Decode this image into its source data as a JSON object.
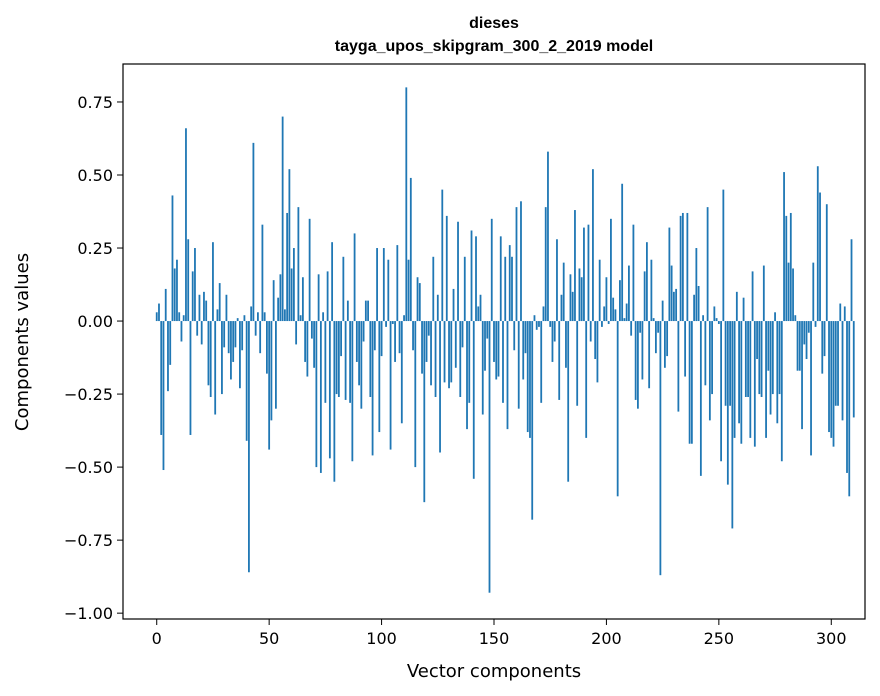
{
  "chart_data": {
    "type": "bar",
    "title_line1": "dieses",
    "title_line2": "tayga_upos_skipgram_300_2_2019 model",
    "xlabel": "Vector components",
    "ylabel": "Components values",
    "xlim": [
      -15,
      315
    ],
    "ylim": [
      -1.02,
      0.88
    ],
    "xticks": [
      0,
      50,
      100,
      150,
      200,
      250,
      300
    ],
    "xtick_labels": [
      "0",
      "50",
      "100",
      "150",
      "200",
      "250",
      "300"
    ],
    "yticks": [
      -1.0,
      -0.75,
      -0.5,
      -0.25,
      0.0,
      0.25,
      0.5,
      0.75
    ],
    "ytick_labels": [
      "−1.00",
      "−0.75",
      "−0.50",
      "−0.25",
      "0.00",
      "0.25",
      "0.50",
      "0.75"
    ],
    "bar_color": "#1f77b4",
    "grid": false,
    "values": [
      0.03,
      0.06,
      -0.39,
      -0.51,
      0.11,
      -0.24,
      -0.15,
      0.43,
      0.18,
      0.21,
      0.03,
      -0.07,
      0.02,
      0.66,
      0.28,
      -0.39,
      0.17,
      0.25,
      -0.05,
      0.09,
      -0.08,
      0.1,
      0.07,
      -0.22,
      -0.26,
      0.27,
      -0.32,
      0.04,
      0.13,
      -0.25,
      -0.09,
      0.09,
      -0.11,
      -0.2,
      -0.14,
      -0.09,
      0.01,
      -0.23,
      -0.1,
      0.02,
      -0.41,
      -0.86,
      0.05,
      0.61,
      -0.05,
      0.03,
      -0.11,
      0.33,
      0.03,
      -0.18,
      -0.44,
      -0.34,
      0.14,
      -0.3,
      0.08,
      0.16,
      0.7,
      0.04,
      0.37,
      0.52,
      0.18,
      0.25,
      -0.08,
      0.39,
      0.02,
      0.15,
      -0.14,
      -0.19,
      0.35,
      -0.06,
      -0.16,
      -0.5,
      0.16,
      -0.52,
      0.03,
      -0.28,
      0.17,
      -0.47,
      0.27,
      -0.55,
      -0.25,
      -0.26,
      -0.12,
      0.22,
      -0.27,
      0.07,
      -0.28,
      -0.48,
      0.3,
      -0.14,
      -0.22,
      -0.3,
      -0.07,
      0.07,
      0.07,
      -0.26,
      -0.46,
      -0.1,
      0.25,
      -0.38,
      -0.12,
      0.25,
      -0.02,
      0.21,
      -0.44,
      -0.01,
      -0.14,
      0.26,
      -0.11,
      -0.35,
      0.02,
      0.8,
      0.21,
      0.49,
      -0.1,
      -0.5,
      0.15,
      0.13,
      -0.18,
      -0.62,
      -0.14,
      -0.05,
      -0.22,
      0.22,
      -0.26,
      0.09,
      -0.45,
      0.45,
      -0.21,
      0.36,
      -0.23,
      -0.21,
      0.11,
      -0.16,
      0.34,
      -0.26,
      -0.09,
      0.22,
      -0.37,
      -0.28,
      0.31,
      -0.54,
      0.29,
      0.05,
      0.09,
      -0.32,
      -0.17,
      -0.06,
      -0.93,
      0.35,
      -0.14,
      -0.2,
      -0.19,
      0.29,
      -0.28,
      0.22,
      -0.37,
      0.26,
      0.22,
      -0.1,
      0.39,
      -0.3,
      0.41,
      -0.2,
      -0.11,
      -0.38,
      -0.4,
      -0.68,
      0.02,
      -0.03,
      -0.02,
      -0.28,
      0.05,
      0.39,
      0.58,
      -0.02,
      -0.14,
      -0.07,
      0.28,
      -0.27,
      0.09,
      0.2,
      -0.16,
      -0.55,
      0.16,
      0.1,
      0.38,
      -0.29,
      0.18,
      0.15,
      0.32,
      -0.4,
      0.33,
      -0.07,
      0.52,
      -0.13,
      -0.21,
      0.21,
      -0.02,
      0.05,
      0.15,
      -0.01,
      0.35,
      0.08,
      0.04,
      -0.6,
      0.14,
      0.47,
      0.01,
      0.06,
      0.19,
      -0.05,
      0.33,
      -0.27,
      -0.3,
      -0.04,
      -0.2,
      0.17,
      0.27,
      -0.23,
      0.21,
      0.01,
      -0.11,
      -0.04,
      -0.87,
      0.07,
      -0.16,
      -0.12,
      0.32,
      0.19,
      0.1,
      0.11,
      -0.31,
      0.36,
      0.37,
      -0.19,
      0.37,
      -0.42,
      -0.42,
      0.09,
      0.25,
      0.12,
      -0.53,
      0.02,
      -0.22,
      0.39,
      -0.34,
      -0.25,
      0.05,
      0.01,
      -0.01,
      -0.48,
      0.45,
      -0.29,
      -0.56,
      -0.29,
      -0.71,
      -0.4,
      0.1,
      -0.35,
      -0.42,
      0.08,
      -0.26,
      -0.26,
      -0.4,
      0.17,
      -0.43,
      -0.13,
      -0.25,
      -0.26,
      0.19,
      -0.4,
      -0.17,
      -0.32,
      -0.25,
      0.03,
      -0.35,
      -0.25,
      -0.48,
      0.51,
      0.36,
      0.2,
      0.37,
      0.18,
      0.02,
      -0.17,
      -0.17,
      -0.37,
      -0.08,
      -0.13,
      -0.04,
      -0.46,
      0.2,
      -0.02,
      0.53,
      0.44,
      -0.18,
      -0.12,
      0.4,
      -0.38,
      -0.4,
      -0.43,
      -0.29,
      -0.29,
      0.06,
      -0.34,
      0.05,
      -0.52,
      -0.6,
      0.28,
      -0.33
    ]
  }
}
